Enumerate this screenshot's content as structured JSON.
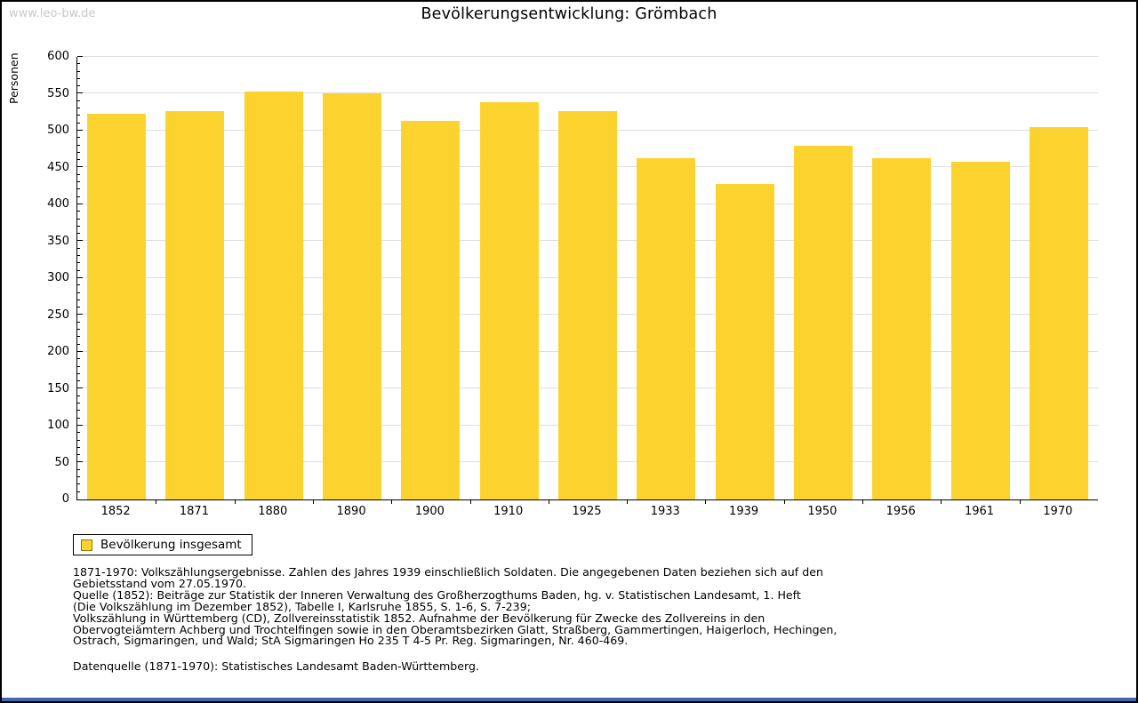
{
  "site": {
    "watermark": "www.leo-bw.de"
  },
  "chart_data": {
    "type": "bar",
    "title": "Bevölkerungsentwicklung: Grömbach",
    "ylabel": "Personen",
    "xlabel": "",
    "categories": [
      "1852",
      "1871",
      "1880",
      "1890",
      "1900",
      "1910",
      "1925",
      "1933",
      "1939",
      "1950",
      "1956",
      "1961",
      "1970"
    ],
    "values": [
      523,
      527,
      553,
      551,
      513,
      538,
      526,
      463,
      428,
      480,
      463,
      458,
      505
    ],
    "series_name": "Bevölkerung insgesamt",
    "ylim": [
      0,
      600
    ],
    "ytick_major": 50,
    "ytick_minor": 10,
    "grid": true,
    "legend": {
      "position": "below-left",
      "entries": [
        "Bevölkerung insgesamt"
      ]
    },
    "colors": {
      "bar": "#fcd32e",
      "swatch_border": "#8b7500",
      "grid": "#dedede",
      "axis": "#000000",
      "watermark": "#c8c8c8",
      "accent": "#4169b1"
    }
  },
  "notes": {
    "lines": [
      "1871-1970: Volkszählungsergebnisse. Zahlen des Jahres 1939 einschließlich Soldaten. Die angegebenen Daten beziehen sich auf den",
      "Gebietsstand vom 27.05.1970.",
      "Quelle (1852): Beiträge zur Statistik der Inneren Verwaltung des Großherzogthums Baden, hg. v. Statistischen Landesamt, 1. Heft",
      "(Die Volkszählung im Dezember 1852), Tabelle I, Karlsruhe 1855, S. 1-6, S. 7-239;",
      "Volkszählung in Württemberg (CD), Zollvereinsstatistik 1852. Aufnahme der Bevölkerung für Zwecke des Zollvereins in den",
      "Obervogteiämtern Achberg und Trochtelfingen sowie in den Oberamtsbezirken Glatt, Straßberg, Gammertingen, Haigerloch, Hechingen,",
      "Ostrach, Sigmaringen, und Wald; StA Sigmaringen Ho 235 T 4-5 Pr. Reg. Sigmaringen, Nr. 460-469."
    ],
    "datasource": "Datenquelle (1871-1970): Statistisches Landesamt Baden-Württemberg."
  }
}
